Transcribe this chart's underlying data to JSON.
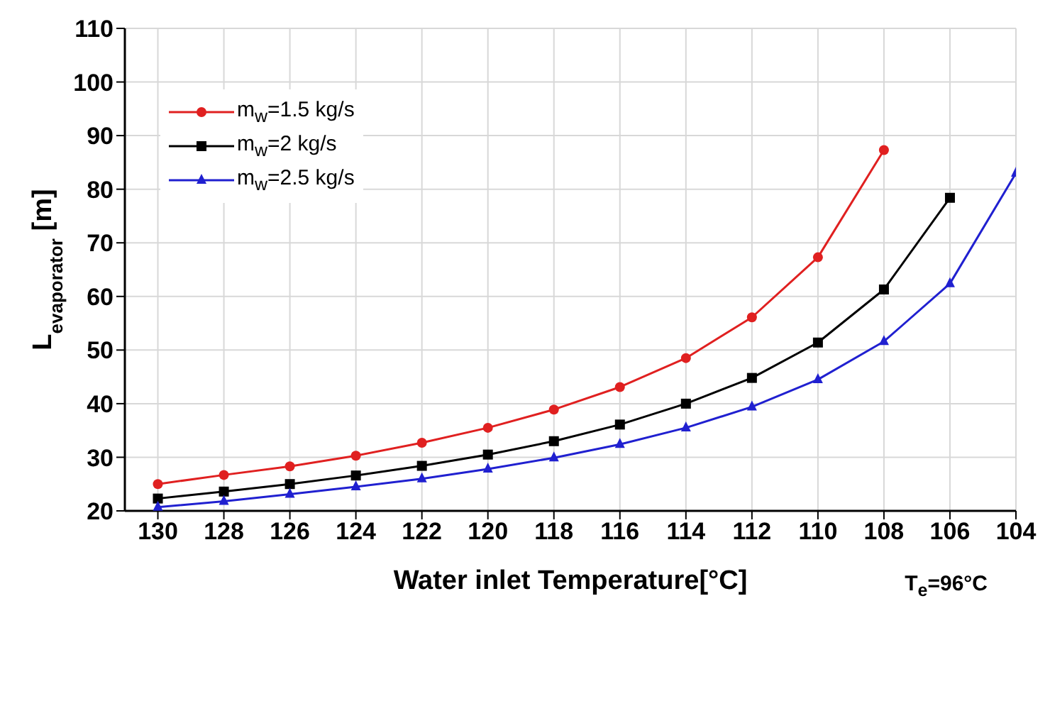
{
  "chart_data": {
    "type": "line",
    "xlabel": "Water inlet Temperature[°C]",
    "ylabel": "L$_{evaporator}$ [m]",
    "annotations": [
      "T$_{e}$=96°C"
    ],
    "x": [
      130,
      128,
      126,
      124,
      122,
      120,
      118,
      116,
      114,
      112,
      110,
      108,
      106,
      104
    ],
    "series": [
      {
        "name": "m$_{w}$=1.5 kg/s",
        "color": "#e02020",
        "marker": "circle",
        "values": [
          25,
          26.7,
          28.3,
          30.3,
          32.7,
          35.5,
          38.9,
          43.1,
          48.5,
          56.1,
          67.3,
          87.3,
          null,
          null
        ]
      },
      {
        "name": "m$_{w}$=2 kg/s",
        "color": "#000000",
        "marker": "square",
        "values": [
          22.3,
          23.6,
          25,
          26.6,
          28.4,
          30.5,
          33,
          36.1,
          40,
          44.8,
          51.4,
          61.3,
          78.4,
          null
        ]
      },
      {
        "name": "m$_{w}$=2.5 kg/s",
        "color": "#2020d0",
        "marker": "triangle",
        "values": [
          20.7,
          21.8,
          23.1,
          24.5,
          26,
          27.8,
          29.9,
          32.4,
          35.5,
          39.4,
          44.5,
          51.6,
          62.4,
          83
        ]
      }
    ],
    "xlim": [
      131,
      104
    ],
    "xticks": [
      130,
      128,
      126,
      124,
      122,
      120,
      118,
      116,
      114,
      112,
      110,
      108,
      106,
      104
    ],
    "ylim": [
      20,
      110
    ],
    "yticks": [
      20,
      30,
      40,
      50,
      60,
      70,
      80,
      90,
      100,
      110
    ],
    "grid": true,
    "legend": "top left",
    "line_style": "solid"
  }
}
